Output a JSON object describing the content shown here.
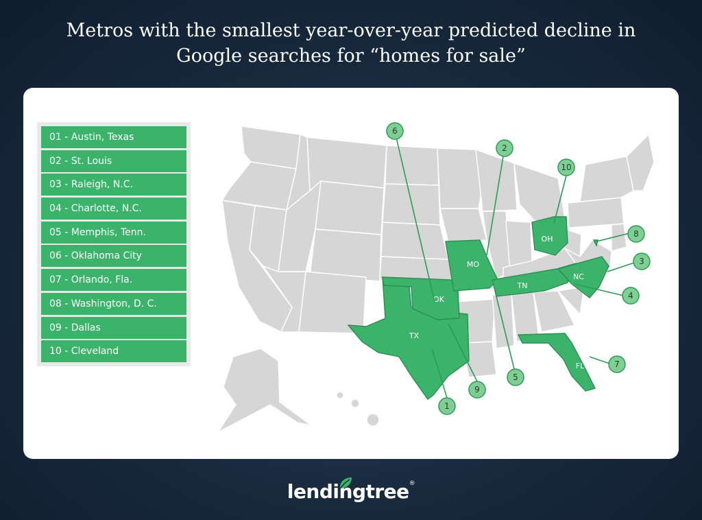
{
  "title": {
    "line1": "Metros with the smallest year-over-year predicted decline in",
    "line2": "Google searches for “homes for sale”"
  },
  "legend": [
    "01 - Austin, Texas",
    "02 - St. Louis",
    "03 - Raleigh, N.C.",
    "04 - Charlotte, N.C.",
    "05 - Memphis, Tenn.",
    "06 - Oklahoma City",
    "07 - Orlando, Fla.",
    "08 - Washington, D. C.",
    "09 - Dallas",
    "10 - Cleveland"
  ],
  "highlighted_states": {
    "tx": "TX",
    "ok": "OK",
    "mo": "MO",
    "tn": "TN",
    "nc": "NC",
    "oh": "OH",
    "fl": "FL"
  },
  "markers": [
    "1",
    "2",
    "3",
    "4",
    "5",
    "6",
    "7",
    "8",
    "9",
    "10"
  ],
  "colors": {
    "highlight": "#3bb36b",
    "badge": "#7fcf95",
    "state_default": "#d6d6d6",
    "background": "#18293d"
  },
  "logo": {
    "text": "lendingtree",
    "mark": "®",
    "icon": "leaf-icon"
  }
}
